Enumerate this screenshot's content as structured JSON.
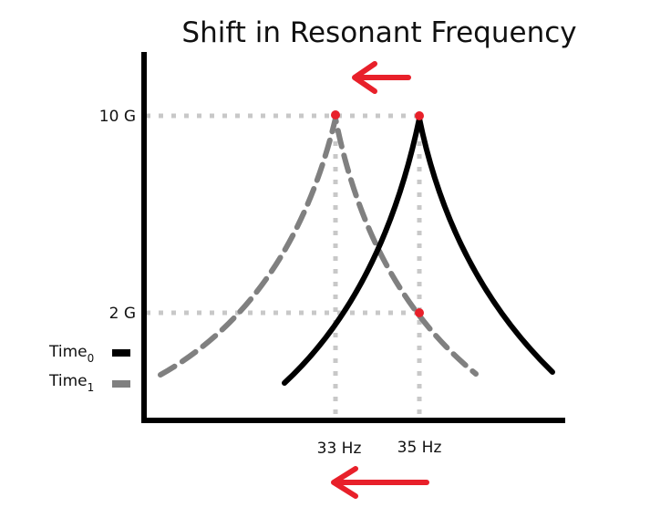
{
  "diagram": {
    "title": "Shift in Resonant Frequency",
    "y_ticks": [
      "10 G",
      "2 G"
    ],
    "x_ticks": [
      "33 Hz",
      "35 Hz"
    ],
    "legend": [
      {
        "base": "Time",
        "sub": "0",
        "style": "solid",
        "color": "#000000"
      },
      {
        "base": "Time",
        "sub": "1",
        "style": "dashed",
        "color": "#808080"
      }
    ],
    "colors": {
      "axis": "#000000",
      "time0_curve": "#000000",
      "time1_curve": "#808080",
      "guide_lines": "#c8c8c8",
      "markers": "#e8202a",
      "arrows": "#e8202a"
    },
    "icons": [
      "arrow-left-icon",
      "arrow-left-icon"
    ]
  }
}
